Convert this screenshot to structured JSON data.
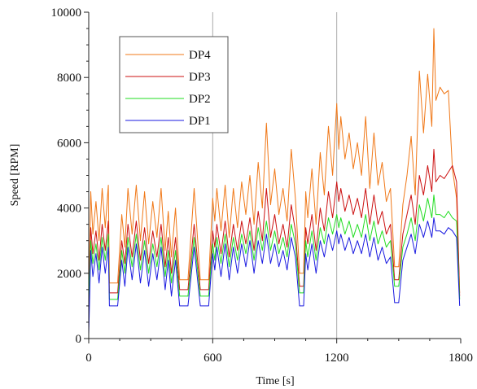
{
  "chart_data": {
    "type": "line",
    "xlabel": "Time [s]",
    "ylabel": "Speed [RPM]",
    "xlim": [
      0,
      1800
    ],
    "ylim": [
      0,
      10000
    ],
    "x_ticks": [
      0,
      600,
      1200,
      1800
    ],
    "y_ticks": [
      0,
      2000,
      4000,
      6000,
      8000,
      10000
    ],
    "grid": true,
    "legend_position": "top-left",
    "series": [
      {
        "name": "DP4",
        "color": "#f07818",
        "x": [
          0,
          10,
          20,
          35,
          50,
          65,
          80,
          95,
          100,
          140,
          160,
          175,
          190,
          210,
          230,
          250,
          270,
          290,
          310,
          330,
          350,
          370,
          385,
          400,
          420,
          440,
          480,
          510,
          540,
          560,
          580,
          600,
          610,
          620,
          640,
          660,
          680,
          700,
          720,
          740,
          760,
          780,
          800,
          820,
          840,
          860,
          880,
          900,
          920,
          940,
          960,
          980,
          1000,
          1020,
          1040,
          1050,
          1060,
          1080,
          1100,
          1120,
          1140,
          1160,
          1180,
          1200,
          1210,
          1220,
          1240,
          1260,
          1280,
          1300,
          1320,
          1340,
          1360,
          1380,
          1400,
          1420,
          1440,
          1460,
          1480,
          1500,
          1520,
          1540,
          1560,
          1580,
          1600,
          1620,
          1640,
          1660,
          1670,
          1680,
          1700,
          1720,
          1740,
          1760,
          1780,
          1795
        ],
        "values": [
          1100,
          4500,
          3200,
          4200,
          3000,
          4600,
          3400,
          4700,
          1700,
          1700,
          3800,
          2800,
          4600,
          3200,
          4700,
          3000,
          4500,
          2900,
          4200,
          3100,
          4600,
          2700,
          3900,
          2500,
          4000,
          1800,
          1800,
          4600,
          1800,
          1800,
          1800,
          4300,
          3600,
          4600,
          3300,
          4700,
          3100,
          4600,
          3400,
          4800,
          3800,
          5000,
          3500,
          5400,
          4000,
          6600,
          4100,
          5200,
          3800,
          4600,
          3600,
          5800,
          4300,
          2000,
          2000,
          4500,
          3700,
          5200,
          3500,
          5700,
          4400,
          6500,
          5000,
          7200,
          5800,
          6800,
          5500,
          6300,
          5200,
          6000,
          5000,
          6800,
          4600,
          6300,
          4700,
          5400,
          4200,
          4600,
          2200,
          2200,
          4100,
          5000,
          6200,
          4400,
          8200,
          6300,
          8100,
          6500,
          9500,
          7300,
          7700,
          7500,
          7600,
          5200,
          4300,
          1400
        ]
      },
      {
        "name": "DP3",
        "color": "#cc1010",
        "x": [
          0,
          10,
          20,
          35,
          50,
          65,
          80,
          95,
          100,
          140,
          160,
          175,
          190,
          210,
          230,
          250,
          270,
          290,
          310,
          330,
          350,
          370,
          385,
          400,
          420,
          440,
          480,
          510,
          540,
          560,
          580,
          600,
          610,
          620,
          640,
          660,
          680,
          700,
          720,
          740,
          760,
          780,
          800,
          820,
          840,
          860,
          880,
          900,
          920,
          940,
          960,
          980,
          1000,
          1020,
          1040,
          1050,
          1060,
          1080,
          1100,
          1120,
          1140,
          1160,
          1180,
          1200,
          1210,
          1220,
          1240,
          1260,
          1280,
          1300,
          1320,
          1340,
          1360,
          1380,
          1400,
          1420,
          1440,
          1460,
          1480,
          1500,
          1520,
          1540,
          1560,
          1580,
          1600,
          1620,
          1640,
          1660,
          1670,
          1680,
          1700,
          1720,
          1740,
          1760,
          1780,
          1795
        ],
        "values": [
          1100,
          3400,
          2600,
          3300,
          2400,
          3500,
          2700,
          3600,
          1400,
          1400,
          3000,
          2300,
          3500,
          2500,
          3600,
          2400,
          3400,
          2300,
          3300,
          2500,
          3500,
          2200,
          3100,
          2000,
          3100,
          1500,
          1500,
          3500,
          1500,
          1500,
          1500,
          3300,
          2800,
          3500,
          2600,
          3600,
          2500,
          3500,
          2700,
          3600,
          2900,
          3700,
          2700,
          3900,
          3000,
          4600,
          3100,
          3800,
          2900,
          3500,
          2800,
          4100,
          3300,
          1600,
          1600,
          3400,
          2900,
          3800,
          2700,
          4000,
          3300,
          4500,
          3700,
          4800,
          4200,
          4600,
          3900,
          4400,
          3800,
          4300,
          3700,
          4600,
          3500,
          4400,
          3500,
          3900,
          3200,
          3500,
          1800,
          1800,
          3200,
          3800,
          4400,
          3500,
          5000,
          4400,
          5300,
          4500,
          5800,
          4800,
          5000,
          4900,
          5100,
          5300,
          4800,
          1300
        ]
      },
      {
        "name": "DP2",
        "color": "#22dd22",
        "x": [
          0,
          10,
          20,
          35,
          50,
          65,
          80,
          95,
          100,
          140,
          160,
          175,
          190,
          210,
          230,
          250,
          270,
          290,
          310,
          330,
          350,
          370,
          385,
          400,
          420,
          440,
          480,
          510,
          540,
          560,
          580,
          600,
          610,
          620,
          640,
          660,
          680,
          700,
          720,
          740,
          760,
          780,
          800,
          820,
          840,
          860,
          880,
          900,
          920,
          940,
          960,
          980,
          1000,
          1020,
          1040,
          1050,
          1060,
          1080,
          1100,
          1120,
          1140,
          1160,
          1180,
          1200,
          1210,
          1220,
          1240,
          1260,
          1280,
          1300,
          1320,
          1340,
          1360,
          1380,
          1400,
          1420,
          1440,
          1460,
          1480,
          1500,
          1520,
          1540,
          1560,
          1580,
          1600,
          1620,
          1640,
          1660,
          1670,
          1680,
          1700,
          1720,
          1740,
          1760,
          1780,
          1795
        ],
        "values": [
          1000,
          3000,
          2300,
          2900,
          2100,
          3100,
          2400,
          3200,
          1200,
          1200,
          2700,
          2000,
          3100,
          2200,
          3200,
          2100,
          3000,
          2000,
          2900,
          2200,
          3100,
          1900,
          2700,
          1700,
          2700,
          1300,
          1300,
          3100,
          1300,
          1300,
          1300,
          2900,
          2400,
          3100,
          2300,
          3200,
          2200,
          3100,
          2400,
          3200,
          2600,
          3300,
          2400,
          3400,
          2700,
          3600,
          2700,
          3300,
          2600,
          3100,
          2500,
          3500,
          2900,
          1400,
          1400,
          3000,
          2500,
          3300,
          2400,
          3400,
          2900,
          3700,
          3200,
          3800,
          3400,
          3700,
          3200,
          3600,
          3100,
          3500,
          3100,
          3800,
          3000,
          3600,
          2900,
          3300,
          2800,
          3000,
          1600,
          1600,
          2800,
          3200,
          3700,
          3000,
          4100,
          3600,
          4300,
          3700,
          4400,
          3800,
          3800,
          3700,
          3900,
          3700,
          3600,
          1200
        ]
      },
      {
        "name": "DP1",
        "color": "#1a1ae0",
        "x": [
          0,
          10,
          20,
          35,
          50,
          65,
          80,
          95,
          100,
          140,
          160,
          175,
          190,
          210,
          230,
          250,
          270,
          290,
          310,
          330,
          350,
          370,
          385,
          400,
          420,
          440,
          480,
          510,
          540,
          560,
          580,
          600,
          610,
          620,
          640,
          660,
          680,
          700,
          720,
          740,
          760,
          780,
          800,
          820,
          840,
          860,
          880,
          900,
          920,
          940,
          960,
          980,
          1000,
          1020,
          1040,
          1050,
          1060,
          1080,
          1100,
          1120,
          1140,
          1160,
          1180,
          1200,
          1210,
          1220,
          1240,
          1260,
          1280,
          1300,
          1320,
          1340,
          1360,
          1380,
          1400,
          1420,
          1440,
          1460,
          1480,
          1500,
          1520,
          1540,
          1560,
          1580,
          1600,
          1620,
          1640,
          1660,
          1670,
          1680,
          1700,
          1720,
          1740,
          1760,
          1780,
          1795
        ],
        "values": [
          100,
          2700,
          1900,
          2600,
          1700,
          2800,
          2000,
          2800,
          1000,
          1000,
          2400,
          1600,
          2800,
          1800,
          2900,
          1700,
          2700,
          1600,
          2600,
          1800,
          2800,
          1500,
          2400,
          1300,
          2400,
          1000,
          1000,
          2800,
          1000,
          1000,
          1000,
          2600,
          2100,
          2800,
          1900,
          2900,
          1800,
          2800,
          2000,
          2900,
          2200,
          3000,
          2000,
          3000,
          2300,
          3200,
          2300,
          2900,
          2200,
          2700,
          2100,
          3100,
          2500,
          1000,
          1000,
          2600,
          2100,
          2900,
          2000,
          3000,
          2500,
          3200,
          2700,
          3300,
          2900,
          3200,
          2700,
          3100,
          2600,
          3000,
          2600,
          3200,
          2500,
          3100,
          2400,
          2800,
          2300,
          2500,
          1100,
          1100,
          2400,
          2800,
          3200,
          2600,
          3500,
          3100,
          3600,
          3100,
          3700,
          3300,
          3300,
          3200,
          3400,
          3300,
          3100,
          1000
        ]
      }
    ]
  }
}
